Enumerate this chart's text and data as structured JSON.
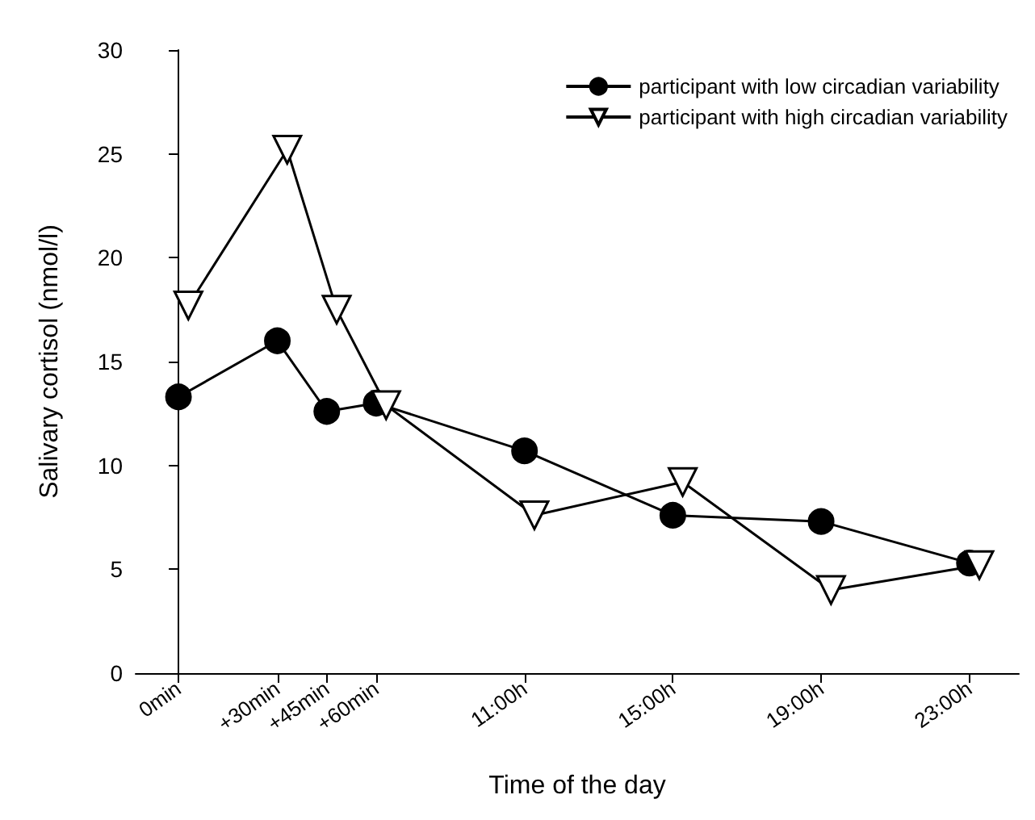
{
  "chart_data": {
    "type": "line",
    "xlabel": "Time of the day",
    "ylabel": "Salivary cortisol (nmol/l)",
    "xlim": [
      -13,
      255
    ],
    "xticks": [
      {
        "value": 0,
        "label": "0min"
      },
      {
        "value": 30,
        "label": "+30min"
      },
      {
        "value": 45,
        "label": "+45min"
      },
      {
        "value": 60,
        "label": "+60min"
      },
      {
        "value": 105,
        "label": "11:00h"
      },
      {
        "value": 150,
        "label": "15:00h"
      },
      {
        "value": 195,
        "label": "19:00h"
      },
      {
        "value": 240,
        "label": "23:00h"
      }
    ],
    "ylim": [
      0,
      30
    ],
    "yticks": [
      0,
      5,
      10,
      15,
      20,
      25,
      30
    ],
    "grid": false,
    "legend": "top right",
    "line_style": "solid",
    "series": [
      {
        "name": "participant with low circadian variability",
        "color": "#000000",
        "marker": "circle",
        "x": [
          0,
          30,
          45,
          60,
          105,
          150,
          195,
          240
        ],
        "values": [
          13.3,
          16.0,
          12.6,
          13.0,
          10.7,
          7.6,
          7.3,
          5.3
        ]
      },
      {
        "name": "participant with high circadian variability",
        "color": "#000000",
        "marker": "triangle",
        "x": [
          3,
          33,
          48,
          63,
          108,
          153,
          198,
          243
        ],
        "values": [
          17.7,
          25.2,
          17.5,
          12.9,
          7.6,
          9.2,
          4.0,
          5.2
        ]
      }
    ]
  }
}
